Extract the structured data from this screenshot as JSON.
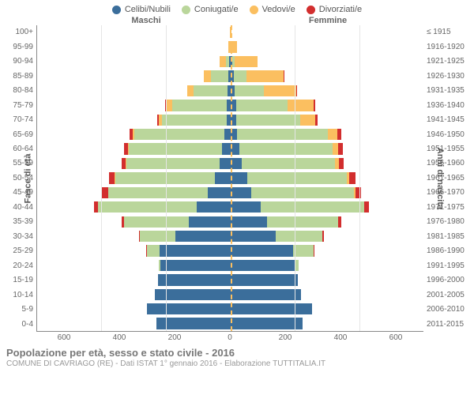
{
  "legend": [
    {
      "label": "Celibi/Nubili",
      "color": "#3b6e9b"
    },
    {
      "label": "Coniugati/e",
      "color": "#bad69b"
    },
    {
      "label": "Vedovi/e",
      "color": "#fbbf60"
    },
    {
      "label": "Divorziati/e",
      "color": "#d22e2e"
    }
  ],
  "gender": {
    "left": "Maschi",
    "right": "Femmine"
  },
  "axis": {
    "left_title": "Fasce di età",
    "right_title": "Anni di nascita",
    "xlim": 600,
    "xticks": [
      600,
      400,
      200,
      0,
      200,
      400,
      600
    ]
  },
  "colors": {
    "celibi": "#3b6e9b",
    "coniugati": "#bad69b",
    "vedovi": "#fbbf60",
    "divorziati": "#d22e2e",
    "grid": "#e5e5e5",
    "center_dash": "#fbbf60"
  },
  "footer": {
    "title": "Popolazione per età, sesso e stato civile - 2016",
    "subtitle": "COMUNE DI CAVRIAGO (RE) - Dati ISTAT 1° gennaio 2016 - Elaborazione TUTTITALIA.IT"
  },
  "rows": [
    {
      "age": "100+",
      "birth": "≤ 1915",
      "m": [
        0,
        0,
        2,
        0
      ],
      "f": [
        0,
        0,
        4,
        0
      ]
    },
    {
      "age": "95-99",
      "birth": "1916-1920",
      "m": [
        0,
        0,
        6,
        0
      ],
      "f": [
        1,
        0,
        20,
        0
      ]
    },
    {
      "age": "90-94",
      "birth": "1921-1925",
      "m": [
        4,
        10,
        18,
        0
      ],
      "f": [
        6,
        8,
        70,
        0
      ]
    },
    {
      "age": "85-89",
      "birth": "1926-1930",
      "m": [
        5,
        55,
        22,
        0
      ],
      "f": [
        10,
        40,
        115,
        2
      ]
    },
    {
      "age": "80-84",
      "birth": "1931-1935",
      "m": [
        8,
        105,
        20,
        2
      ],
      "f": [
        14,
        90,
        100,
        3
      ]
    },
    {
      "age": "75-79",
      "birth": "1936-1940",
      "m": [
        10,
        170,
        18,
        4
      ],
      "f": [
        18,
        160,
        80,
        6
      ]
    },
    {
      "age": "70-74",
      "birth": "1941-1945",
      "m": [
        12,
        200,
        10,
        6
      ],
      "f": [
        18,
        200,
        45,
        8
      ]
    },
    {
      "age": "65-69",
      "birth": "1946-1950",
      "m": [
        18,
        280,
        6,
        10
      ],
      "f": [
        22,
        280,
        30,
        12
      ]
    },
    {
      "age": "60-64",
      "birth": "1951-1955",
      "m": [
        25,
        290,
        3,
        12
      ],
      "f": [
        28,
        290,
        18,
        14
      ]
    },
    {
      "age": "55-59",
      "birth": "1956-1960",
      "m": [
        32,
        290,
        2,
        14
      ],
      "f": [
        35,
        290,
        12,
        16
      ]
    },
    {
      "age": "50-54",
      "birth": "1961-1965",
      "m": [
        48,
        310,
        1,
        18
      ],
      "f": [
        52,
        310,
        8,
        20
      ]
    },
    {
      "age": "45-49",
      "birth": "1966-1970",
      "m": [
        70,
        310,
        0,
        18
      ],
      "f": [
        65,
        320,
        4,
        18
      ]
    },
    {
      "age": "40-44",
      "birth": "1971-1975",
      "m": [
        105,
        305,
        0,
        14
      ],
      "f": [
        95,
        320,
        2,
        14
      ]
    },
    {
      "age": "35-39",
      "birth": "1976-1980",
      "m": [
        130,
        200,
        0,
        8
      ],
      "f": [
        115,
        220,
        0,
        10
      ]
    },
    {
      "age": "30-34",
      "birth": "1981-1985",
      "m": [
        170,
        110,
        0,
        3
      ],
      "f": [
        140,
        145,
        0,
        5
      ]
    },
    {
      "age": "25-29",
      "birth": "1986-1990",
      "m": [
        220,
        40,
        0,
        1
      ],
      "f": [
        195,
        65,
        0,
        2
      ]
    },
    {
      "age": "20-24",
      "birth": "1991-1995",
      "m": [
        218,
        5,
        0,
        0
      ],
      "f": [
        200,
        12,
        0,
        0
      ]
    },
    {
      "age": "15-19",
      "birth": "1996-2000",
      "m": [
        225,
        0,
        0,
        0
      ],
      "f": [
        210,
        0,
        0,
        0
      ]
    },
    {
      "age": "10-14",
      "birth": "2001-2005",
      "m": [
        235,
        0,
        0,
        0
      ],
      "f": [
        220,
        0,
        0,
        0
      ]
    },
    {
      "age": "5-9",
      "birth": "2006-2010",
      "m": [
        260,
        0,
        0,
        0
      ],
      "f": [
        255,
        0,
        0,
        0
      ]
    },
    {
      "age": "0-4",
      "birth": "2011-2015",
      "m": [
        230,
        0,
        0,
        0
      ],
      "f": [
        225,
        0,
        0,
        0
      ]
    }
  ]
}
